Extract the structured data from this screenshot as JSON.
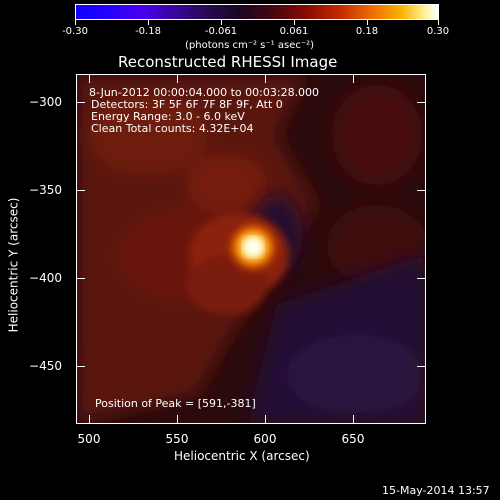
{
  "colorbar": {
    "ticks": [
      "-0.30",
      "-0.18",
      "-0.061",
      "0.061",
      "0.18",
      "0.30"
    ],
    "unit_label": "(photons cm⁻² s⁻¹ asec⁻²)"
  },
  "plot": {
    "title": "Reconstructed RHESSI Image",
    "info_lines": [
      "8-Jun-2012 00:00:04.000 to 00:03:28.000",
      "Detectors: 3F 5F 6F 7F 8F 9F, Att 0",
      "Energy Range: 3.0 - 6.0 keV",
      "Clean      Total counts: 4.32E+04"
    ],
    "peak_label": "Position of Peak = [591,-381]",
    "x_axis_label": "Heliocentric X (arcsec)",
    "y_axis_label": "Heliocentric Y (arcsec)",
    "x_ticks": [
      "500",
      "550",
      "600",
      "650"
    ],
    "y_ticks": [
      "−300",
      "−350",
      "−400",
      "−450"
    ]
  },
  "footer": {
    "timestamp": "15-May-2014 13:57"
  },
  "colors": {
    "background": "#000000",
    "source_core": "#ffffd0",
    "source_halo": "#e05a00"
  }
}
